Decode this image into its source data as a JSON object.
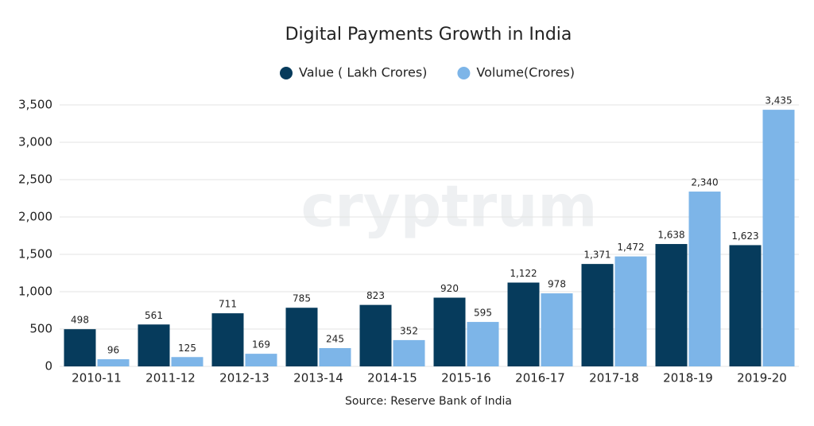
{
  "chart_data": {
    "type": "bar",
    "title": "Digital Payments Growth in India",
    "source": "Source: Reserve Bank of India",
    "watermark": "cryptrum",
    "categories": [
      "2010-11",
      "2011-12",
      "2012-13",
      "2013-14",
      "2014-15",
      "2015-16",
      "2016-17",
      "2017-18",
      "2018-19",
      "2019-20"
    ],
    "series": [
      {
        "name": "Value ( Lakh Crores)",
        "color": "#063b5c",
        "values": [
          498,
          561,
          711,
          785,
          823,
          920,
          1122,
          1371,
          1638,
          1623
        ],
        "value_labels": [
          "498",
          "561",
          "711",
          "785",
          "823",
          "920",
          "1,122",
          "1,371",
          "1,638",
          "1,623"
        ]
      },
      {
        "name": "Volume(Crores)",
        "color": "#7db5e8",
        "values": [
          96,
          125,
          169,
          245,
          352,
          595,
          978,
          1472,
          2340,
          3435
        ],
        "value_labels": [
          "96",
          "125",
          "169",
          "245",
          "352",
          "595",
          "978",
          "1,472",
          "2,340",
          "3,435"
        ]
      }
    ],
    "ylim": [
      0,
      3500
    ],
    "yticks": [
      0,
      500,
      {
        "value": 1000,
        "label": "1,000"
      },
      {
        "value": 1500,
        "label": "1,500"
      },
      {
        "value": 2000,
        "label": "2,000"
      },
      {
        "value": 2500,
        "label": "2,500"
      },
      {
        "value": 3000,
        "label": "3,000"
      },
      {
        "value": 3500,
        "label": "3,500"
      }
    ],
    "grid": true,
    "legend": "top"
  }
}
